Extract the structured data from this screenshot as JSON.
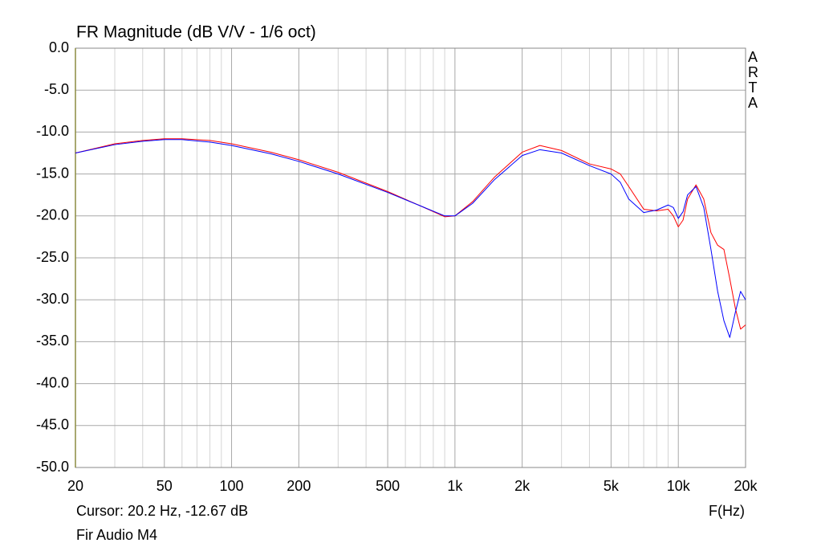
{
  "chart_data": {
    "type": "line",
    "title": "FR Magnitude (dB V/V - 1/6 oct)",
    "watermark": "ARTA",
    "cursor": "Cursor: 20.2 Hz, -12.67 dB",
    "x_label": "F(Hz)",
    "caption": "Fir Audio M4",
    "log_x": true,
    "grid": true,
    "xlim": [
      20,
      20000
    ],
    "ylim": [
      -50,
      0
    ],
    "xticks": [
      20,
      50,
      100,
      200,
      500,
      {
        "value": 1000,
        "label": "1k"
      },
      {
        "value": 2000,
        "label": "2k"
      },
      {
        "value": 5000,
        "label": "5k"
      },
      {
        "value": 10000,
        "label": "10k"
      },
      {
        "value": 20000,
        "label": "20k"
      }
    ],
    "minor_xticks": [
      30,
      40,
      60,
      70,
      80,
      90,
      300,
      400,
      600,
      700,
      800,
      900,
      3000,
      4000,
      6000,
      7000,
      8000,
      9000
    ],
    "yticks": [
      {
        "value": 0,
        "label": "0.0"
      },
      {
        "value": -5,
        "label": "-5.0"
      },
      {
        "value": -10,
        "label": "-10.0"
      },
      {
        "value": -15,
        "label": "-15.0"
      },
      {
        "value": -20,
        "label": "-20.0"
      },
      {
        "value": -25,
        "label": "-25.0"
      },
      {
        "value": -30,
        "label": "-30.0"
      },
      {
        "value": -35,
        "label": "-35.0"
      },
      {
        "value": -40,
        "label": "-40.0"
      },
      {
        "value": -45,
        "label": "-45.0"
      },
      {
        "value": -50,
        "label": "-50.0"
      }
    ],
    "x": [
      20,
      30,
      40,
      50,
      60,
      80,
      100,
      150,
      200,
      300,
      500,
      700,
      900,
      1000,
      1200,
      1500,
      2000,
      2400,
      3000,
      4000,
      5000,
      5500,
      6000,
      7000,
      8000,
      9000,
      9500,
      10000,
      10500,
      11000,
      12000,
      13000,
      14000,
      15000,
      16000,
      17000,
      18000,
      19000,
      20000
    ],
    "series": [
      {
        "color": "#ff0000",
        "values": [
          -12.5,
          -11.4,
          -11.0,
          -10.8,
          -10.8,
          -11.0,
          -11.4,
          -12.4,
          -13.3,
          -14.8,
          -17.1,
          -18.8,
          -20.1,
          -20.0,
          -18.3,
          -15.4,
          -12.4,
          -11.6,
          -12.2,
          -13.8,
          -14.4,
          -15.0,
          -16.5,
          -19.2,
          -19.4,
          -19.2,
          -20.0,
          -21.3,
          -20.5,
          -18.0,
          -16.3,
          -18.0,
          -22.0,
          -23.5,
          -24.0,
          -27.5,
          -31.0,
          -33.5,
          -33.0
        ]
      },
      {
        "color": "#0000ff",
        "values": [
          -12.5,
          -11.5,
          -11.1,
          -10.9,
          -10.9,
          -11.2,
          -11.6,
          -12.6,
          -13.5,
          -15.0,
          -17.2,
          -18.8,
          -20.0,
          -20.0,
          -18.5,
          -15.7,
          -12.8,
          -12.1,
          -12.5,
          -14.0,
          -15.0,
          -16.0,
          -18.0,
          -19.6,
          -19.3,
          -18.7,
          -19.0,
          -20.3,
          -19.5,
          -17.5,
          -16.5,
          -19.0,
          -24.0,
          -29.0,
          -32.5,
          -34.5,
          -31.5,
          -29.0,
          -30.0
        ]
      }
    ]
  }
}
